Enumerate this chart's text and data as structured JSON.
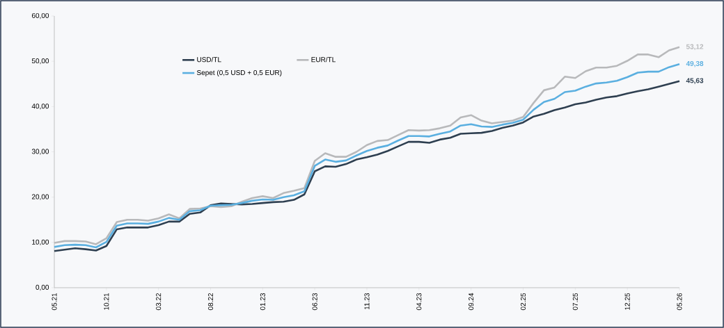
{
  "chart_data": {
    "type": "line",
    "ylim": [
      0,
      60
    ],
    "yticks": [
      {
        "value": 0,
        "label": "0,00"
      },
      {
        "value": 10,
        "label": "10,00"
      },
      {
        "value": 20,
        "label": "20,00"
      },
      {
        "value": 30,
        "label": "30,00"
      },
      {
        "value": 40,
        "label": "40,00"
      },
      {
        "value": 50,
        "label": "50,00"
      },
      {
        "value": 60,
        "label": "60,00"
      }
    ],
    "categories": [
      "05.21",
      null,
      null,
      null,
      null,
      "10.21",
      null,
      null,
      null,
      null,
      "03.22",
      null,
      null,
      null,
      null,
      "08.22",
      null,
      null,
      null,
      null,
      "01.23",
      null,
      null,
      null,
      null,
      "06.23",
      null,
      null,
      null,
      null,
      "11.23",
      null,
      null,
      null,
      null,
      "04.23",
      null,
      null,
      null,
      null,
      "09.24",
      null,
      null,
      null,
      null,
      "02.25",
      null,
      null,
      null,
      null,
      "07.25",
      null,
      null,
      null,
      null,
      "12.25",
      null,
      null,
      null,
      null,
      "05.26"
    ],
    "grid": false,
    "legend": "top left",
    "marker": "none",
    "line_style": "solid",
    "series": [
      {
        "name": "USD/TL",
        "color": "#2e3f50",
        "values": [
          8.1,
          8.4,
          8.7,
          8.5,
          8.2,
          9.2,
          12.9,
          13.3,
          13.3,
          13.3,
          13.8,
          14.6,
          14.6,
          16.3,
          16.6,
          18.2,
          18.6,
          18.5,
          18.4,
          18.5,
          18.7,
          18.9,
          19.0,
          19.4,
          20.6,
          25.7,
          26.8,
          26.7,
          27.3,
          28.3,
          28.8,
          29.4,
          30.2,
          31.2,
          32.2,
          32.2,
          32.0,
          32.7,
          33.1,
          34.0,
          34.1,
          34.2,
          34.6,
          35.3,
          35.8,
          36.5,
          37.8,
          38.4,
          39.2,
          39.8,
          40.5,
          40.9,
          41.5,
          42.0,
          42.3,
          42.9,
          43.4,
          43.8,
          44.4,
          45.0,
          45.63
        ],
        "value_labels": [
          null,
          null,
          null,
          null,
          null,
          null,
          null,
          null,
          null,
          null,
          null,
          null,
          null,
          null,
          null,
          null,
          null,
          null,
          null,
          null,
          null,
          null,
          null,
          null,
          null,
          null,
          null,
          null,
          null,
          null,
          null,
          null,
          null,
          null,
          null,
          null,
          null,
          null,
          null,
          null,
          null,
          null,
          null,
          null,
          null,
          null,
          null,
          null,
          null,
          null,
          null,
          null,
          null,
          null,
          null,
          null,
          null,
          null,
          null,
          null,
          "45,63"
        ]
      },
      {
        "name": "EUR/TL",
        "color": "#b8b9bb",
        "values": [
          9.9,
          10.3,
          10.3,
          10.2,
          9.6,
          10.9,
          14.5,
          15.0,
          15.0,
          14.8,
          15.3,
          16.2,
          15.3,
          17.4,
          17.5,
          18.0,
          17.8,
          18.0,
          19.0,
          19.8,
          20.2,
          19.8,
          20.9,
          21.4,
          22.0,
          28.0,
          29.7,
          28.9,
          28.9,
          30.0,
          31.5,
          32.4,
          32.6,
          33.7,
          34.8,
          34.7,
          34.8,
          35.2,
          35.8,
          37.6,
          38.1,
          36.9,
          36.3,
          36.6,
          36.9,
          37.7,
          40.8,
          43.6,
          44.2,
          46.6,
          46.3,
          47.8,
          48.6,
          48.6,
          49.0,
          50.1,
          51.5,
          51.5,
          50.9,
          52.4,
          53.12
        ],
        "value_labels": [
          null,
          null,
          null,
          null,
          null,
          null,
          null,
          null,
          null,
          null,
          null,
          null,
          null,
          null,
          null,
          null,
          null,
          null,
          null,
          null,
          null,
          null,
          null,
          null,
          null,
          null,
          null,
          null,
          null,
          null,
          null,
          null,
          null,
          null,
          null,
          null,
          null,
          null,
          null,
          null,
          null,
          null,
          null,
          null,
          null,
          null,
          null,
          null,
          null,
          null,
          null,
          null,
          null,
          null,
          null,
          null,
          null,
          null,
          null,
          null,
          "53,12"
        ]
      },
      {
        "name": "Sepet (0,5 USD + 0,5 EUR)",
        "color": "#5aafe0",
        "values": [
          9.0,
          9.4,
          9.5,
          9.4,
          8.9,
          10.1,
          13.7,
          14.2,
          14.2,
          14.1,
          14.6,
          15.4,
          15.0,
          16.9,
          17.1,
          18.1,
          18.2,
          18.3,
          18.7,
          19.2,
          19.5,
          19.4,
          20.0,
          20.4,
          21.3,
          26.9,
          28.3,
          27.8,
          28.1,
          29.2,
          30.2,
          30.9,
          31.4,
          32.5,
          33.5,
          33.5,
          33.4,
          34.0,
          34.5,
          35.8,
          36.1,
          35.6,
          35.5,
          36.0,
          36.4,
          37.1,
          39.3,
          41.0,
          41.7,
          43.2,
          43.5,
          44.4,
          45.1,
          45.3,
          45.7,
          46.5,
          47.5,
          47.7,
          47.7,
          48.7,
          49.38
        ],
        "value_labels": [
          null,
          null,
          null,
          null,
          null,
          null,
          null,
          null,
          null,
          null,
          null,
          null,
          null,
          null,
          null,
          null,
          null,
          null,
          null,
          null,
          null,
          null,
          null,
          null,
          null,
          null,
          null,
          null,
          null,
          null,
          null,
          null,
          null,
          null,
          null,
          null,
          null,
          null,
          null,
          null,
          null,
          null,
          null,
          null,
          null,
          null,
          null,
          null,
          null,
          null,
          null,
          null,
          null,
          null,
          null,
          null,
          null,
          null,
          null,
          null,
          "49,38"
        ]
      }
    ]
  }
}
